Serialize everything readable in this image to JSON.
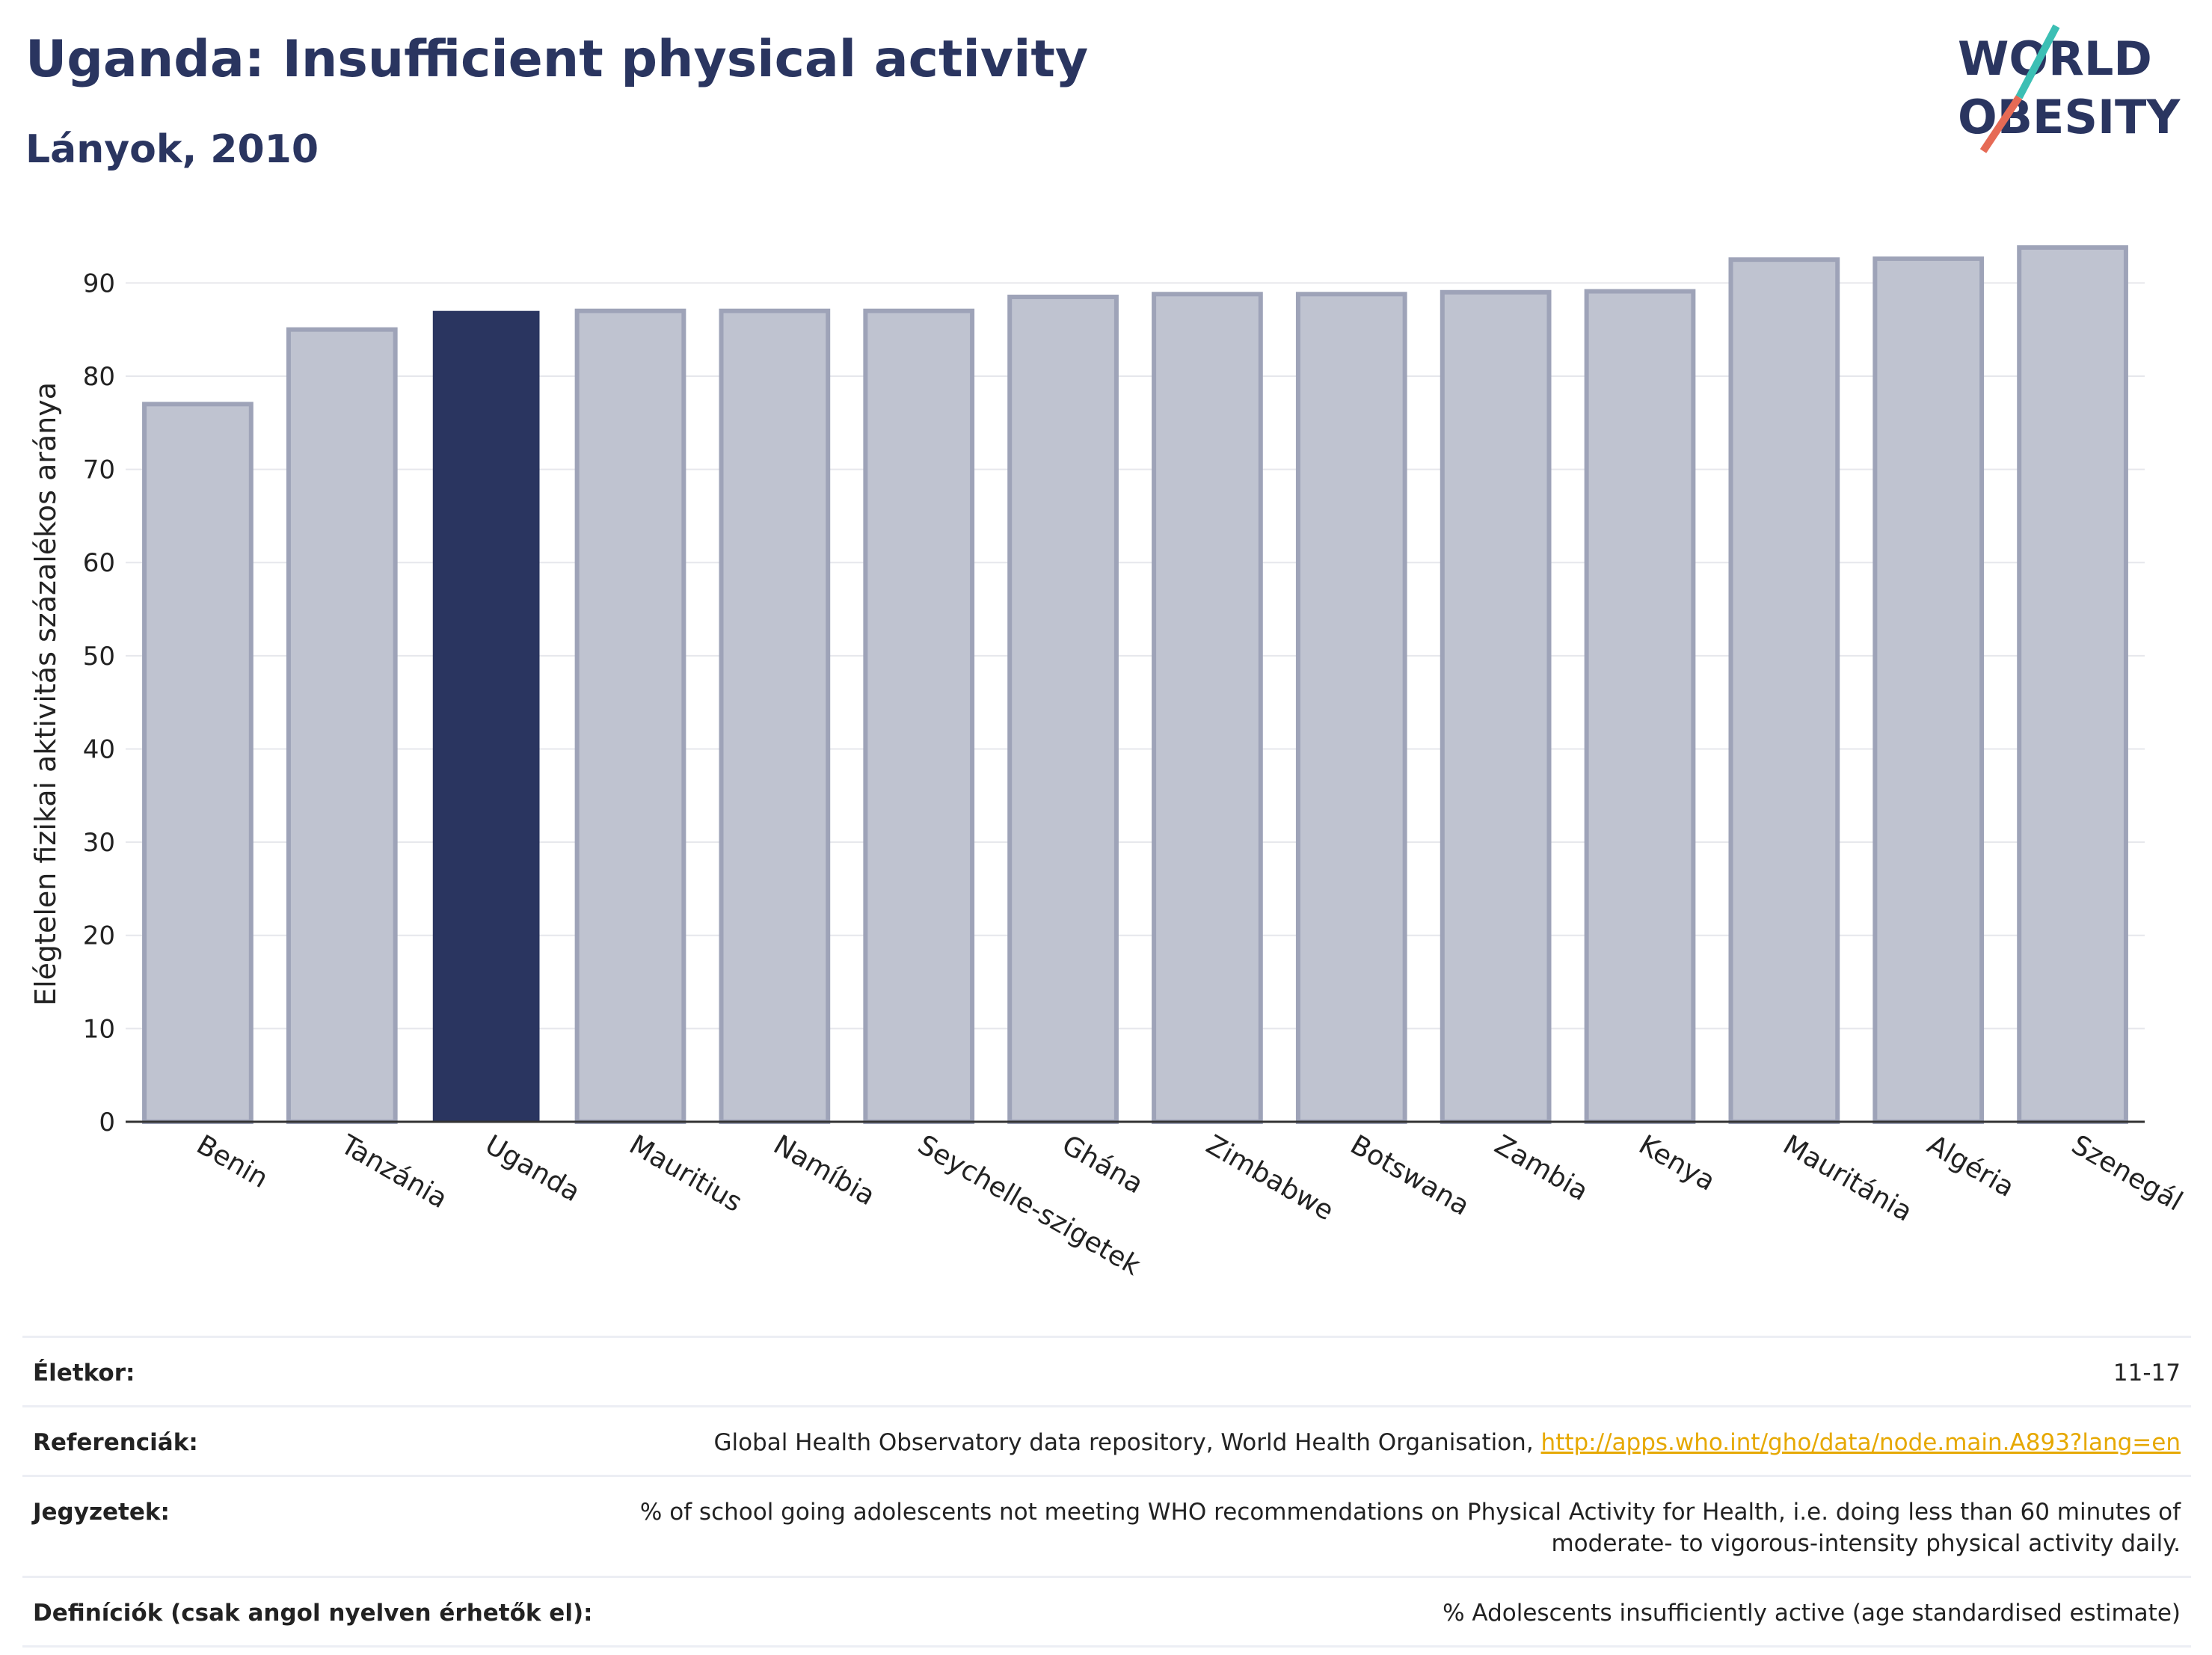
{
  "header": {
    "title": "Uganda: Insufficient physical activity",
    "subtitle": "Lányok, 2010"
  },
  "logo": {
    "line1": "WORLD",
    "line2": "OBESITY"
  },
  "chart_data": {
    "type": "bar",
    "ylabel": "Elégtelen fizikai aktivitás százalékos aránya",
    "ylim": [
      0,
      95
    ],
    "yticks": [
      0,
      10,
      20,
      30,
      40,
      50,
      60,
      70,
      80,
      90
    ],
    "grid": true,
    "categories": [
      "Benin",
      "Tanzánia",
      "Uganda",
      "Mauritius",
      "Namíbia",
      "Seychelle-szigetek",
      "Ghána",
      "Zimbabwe",
      "Botswana",
      "Zambia",
      "Kenya",
      "Mauritánia",
      "Algéria",
      "Szenegál"
    ],
    "values": [
      77,
      85,
      87,
      87,
      87,
      87,
      88.5,
      88.8,
      88.8,
      89,
      89.1,
      92.5,
      92.6,
      93.8
    ],
    "highlight": "Uganda",
    "colors": {
      "highlight": "#2a3560",
      "default": "#bfc3d0",
      "default_edge": "#9ea3b8"
    }
  },
  "meta": {
    "age_label": "Életkor:",
    "age_value": "11-17",
    "refs_label": "Referenciák:",
    "refs_text": "Global Health Observatory data repository, World Health Organisation,",
    "refs_link": "http://apps.who.int/gho/data/node.main.A893?lang=en",
    "notes_label": "Jegyzetek:",
    "notes_line1": "% of school going adolescents not meeting WHO recommendations on Physical Activity for Health, i.e. doing less than 60 minutes of",
    "notes_line2": "moderate- to vigorous-intensity physical activity daily.",
    "defs_label": "Definíciók (csak angol nyelven érhetők el):",
    "defs_value": "% Adolescents insufficiently active (age standardised estimate)"
  }
}
